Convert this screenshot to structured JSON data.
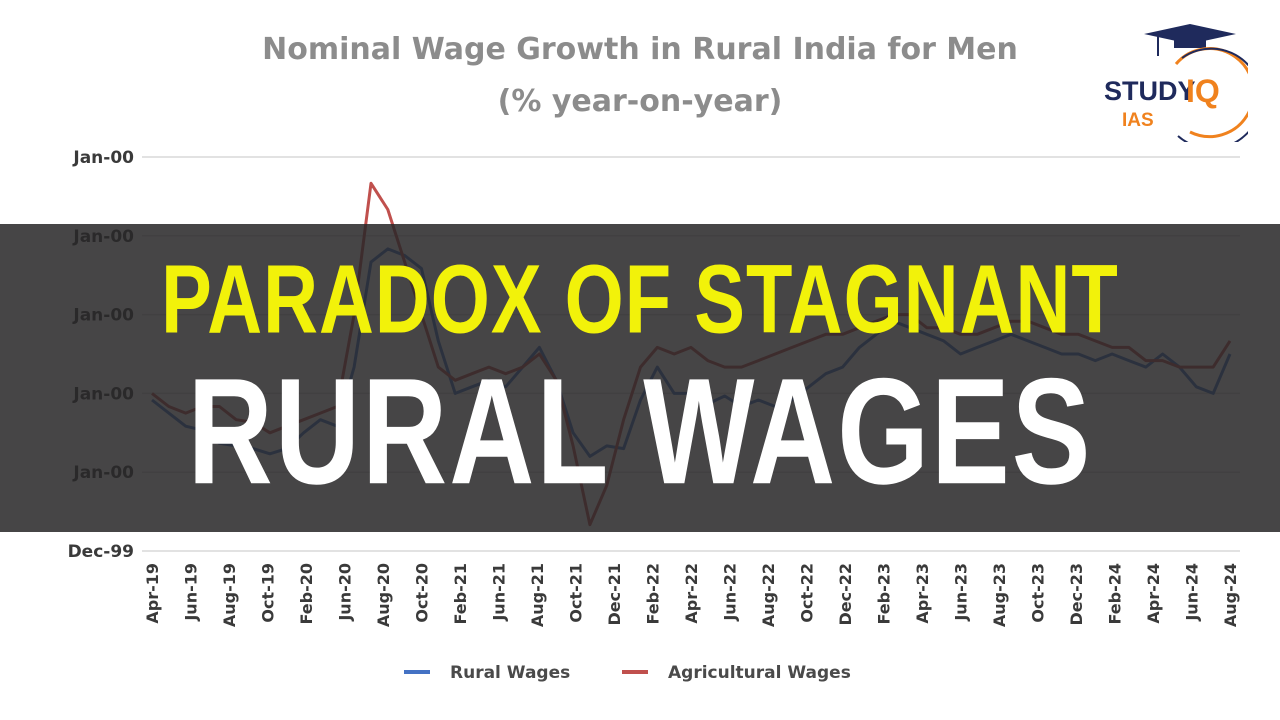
{
  "chart_data": {
    "type": "line",
    "title": "Nominal Wage Growth in Rural India for Men",
    "subtitle": "(% year-on-year)",
    "y_tick_labels": [
      "Jan-00",
      "Jan-00",
      "Jan-00",
      "Jan-00",
      "Jan-00",
      "Dec-99"
    ],
    "ylim": [
      -6,
      24
    ],
    "grid": true,
    "legend_position": "bottom",
    "x": [
      "Apr-19",
      "May-19",
      "Jun-19",
      "Jul-19",
      "Aug-19",
      "Sep-19",
      "Oct-19",
      "Nov-19",
      "Dec-19",
      "Jan-20",
      "Feb-20",
      "Mar-20",
      "Apr-20",
      "May-20",
      "Jun-20",
      "Jul-20",
      "Aug-20",
      "Sep-20",
      "Oct-20",
      "Nov-20",
      "Dec-20",
      "Jan-21",
      "Feb-21",
      "Mar-21",
      "Apr-21",
      "May-21",
      "Jun-21",
      "Jul-21",
      "Aug-21",
      "Sep-21",
      "Oct-21",
      "Nov-21",
      "Dec-21",
      "Jan-22",
      "Feb-22",
      "Mar-22",
      "Apr-22",
      "May-22",
      "Jun-22",
      "Jul-22",
      "Aug-22",
      "Sep-22",
      "Oct-22",
      "Nov-22",
      "Dec-22",
      "Jan-23",
      "Feb-23",
      "Mar-23",
      "Apr-23",
      "May-23",
      "Jun-23",
      "Jul-23",
      "Aug-23",
      "Sep-23",
      "Oct-23",
      "Nov-23",
      "Dec-23",
      "Jan-24",
      "Feb-24",
      "Mar-24",
      "Apr-24",
      "May-24",
      "Jun-24",
      "Jul-24",
      "Aug-24"
    ],
    "x_tick_labels": [
      "Apr-19",
      "Jun-19",
      "Aug-19",
      "Oct-19",
      "Feb-20",
      "Jun-20",
      "Aug-20",
      "Oct-20",
      "Feb-21",
      "Jun-21",
      "Aug-21",
      "Oct-21",
      "Dec-21",
      "Feb-22",
      "Apr-22",
      "Jun-22",
      "Aug-22",
      "Oct-22",
      "Dec-22",
      "Feb-23",
      "Apr-23",
      "Jun-23",
      "Aug-23",
      "Oct-23",
      "Dec-23",
      "Feb-24",
      "Apr-24",
      "Jun-24",
      "Aug-24"
    ],
    "series": [
      {
        "name": "Rural Wages",
        "color": "#4472c4",
        "values": [
          5.5,
          4.5,
          3.5,
          3.2,
          2.2,
          2.0,
          1.8,
          1.4,
          1.8,
          3.0,
          4.0,
          3.5,
          8.0,
          16.0,
          17.0,
          16.5,
          15.5,
          10.0,
          6.0,
          6.5,
          7.0,
          6.5,
          8.0,
          9.5,
          7.0,
          3.0,
          1.2,
          2.0,
          1.8,
          5.5,
          8.0,
          6.0,
          6.0,
          5.2,
          5.8,
          5.0,
          5.5,
          5.0,
          5.5,
          6.5,
          7.5,
          8.0,
          9.5,
          10.5,
          11.5,
          11.0,
          10.5,
          10.0,
          9.0,
          9.5,
          10.0,
          10.5,
          10.0,
          9.5,
          9.0,
          9.0,
          8.5,
          9.0,
          8.5,
          8.0,
          9.0,
          8.0,
          6.5,
          6.0,
          9.0
        ]
      },
      {
        "name": "Agricultural Wages",
        "color": "#c0504d",
        "values": [
          6.0,
          5.0,
          4.5,
          5.0,
          5.0,
          4.0,
          3.8,
          3.0,
          3.5,
          4.0,
          4.5,
          5.0,
          12.0,
          22.0,
          20.0,
          16.0,
          12.0,
          8.0,
          7.0,
          7.5,
          8.0,
          7.5,
          8.0,
          9.0,
          7.0,
          2.0,
          -4.0,
          -1.0,
          4.0,
          8.0,
          9.5,
          9.0,
          9.5,
          8.5,
          8.0,
          8.0,
          8.5,
          9.0,
          9.5,
          10.0,
          10.5,
          10.5,
          11.0,
          11.5,
          12.0,
          12.0,
          11.0,
          11.0,
          10.5,
          10.5,
          11.0,
          11.5,
          11.5,
          11.0,
          10.5,
          10.5,
          10.0,
          9.5,
          9.5,
          8.5,
          8.5,
          8.0,
          8.0,
          8.0,
          10.0
        ]
      }
    ]
  },
  "headline": {
    "line1": "PARADOX OF STAGNANT",
    "line2": "RURAL WAGES"
  },
  "logo": {
    "word1": "STUDY",
    "word2": "IQ",
    "word3": "IAS",
    "brand_navy": "#1f2a5c",
    "brand_orange": "#f0821e"
  },
  "colors": {
    "headline_yellow": "#f2f20a",
    "banner_bg": "#2a282a"
  }
}
